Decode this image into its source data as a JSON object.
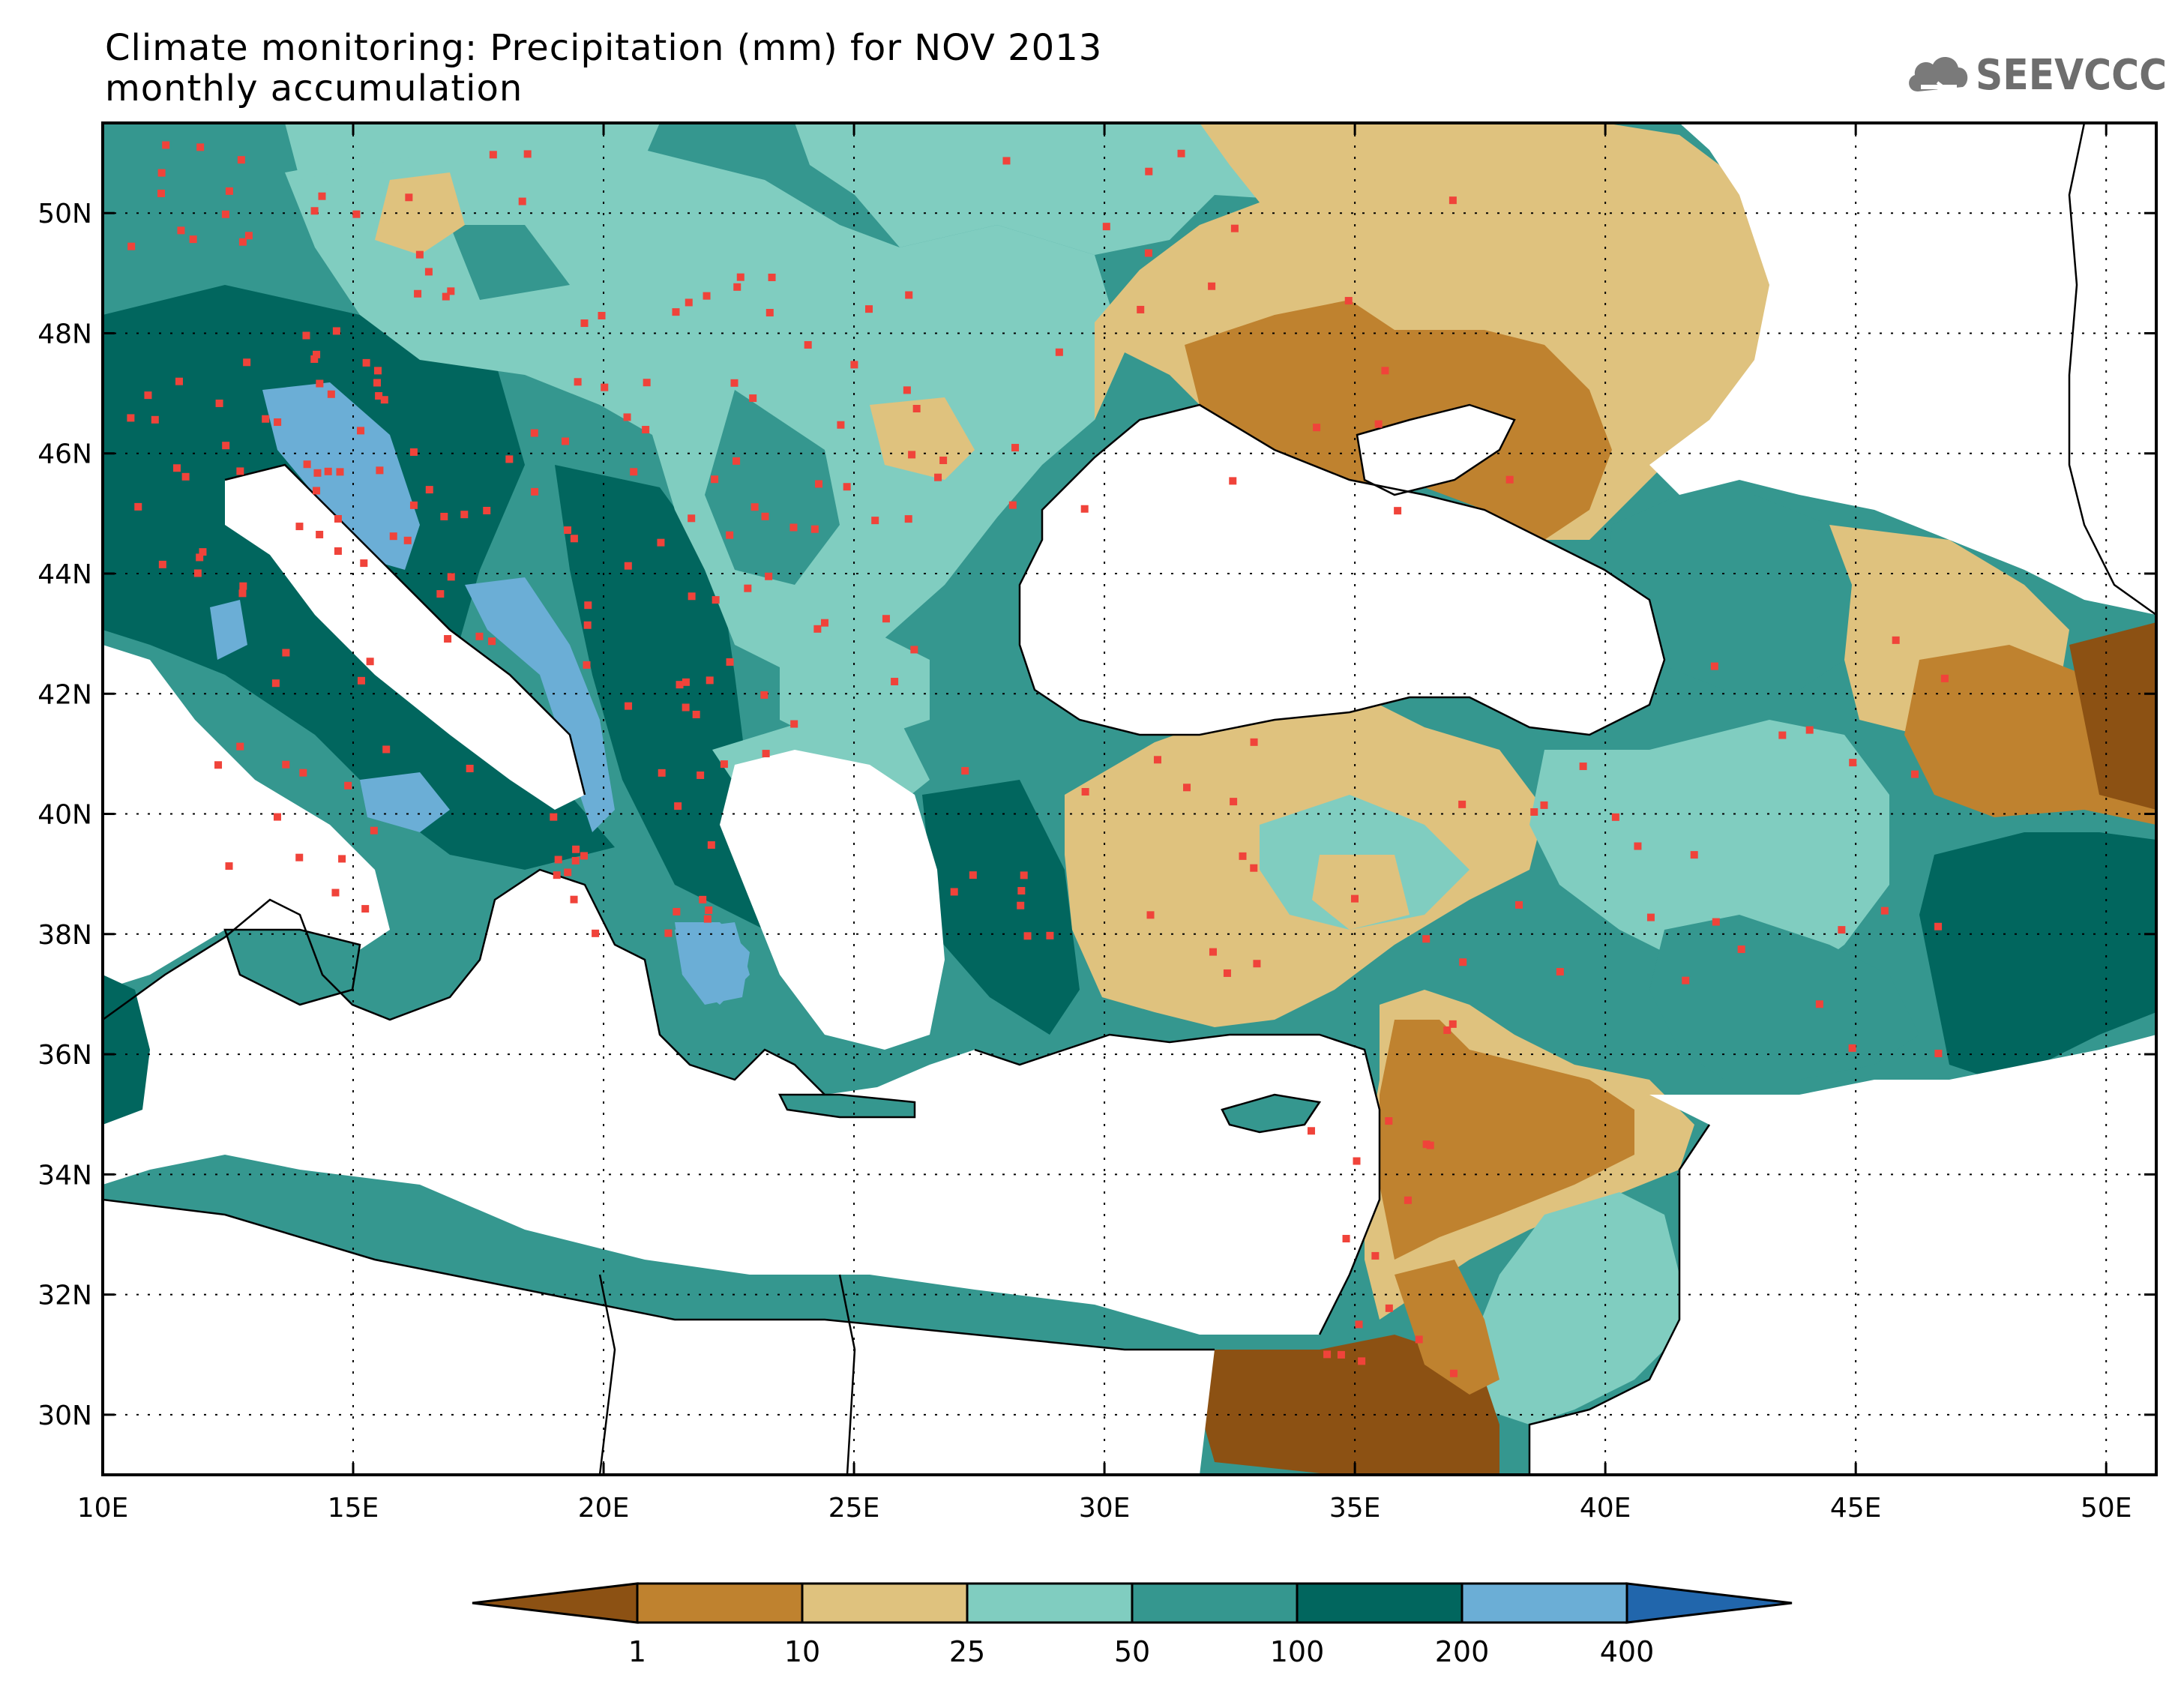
{
  "title": "Climate monitoring: Precipitation (mm) for NOV 2013",
  "subtitle": "monthly accumulation",
  "logo": {
    "text": "SEEVCCC",
    "icon": "cloud-icon"
  },
  "map": {
    "lon_range": [
      10,
      51
    ],
    "lat_range": [
      29,
      51.5
    ],
    "lon_ticks": [
      {
        "value": 10,
        "label": "10E"
      },
      {
        "value": 15,
        "label": "15E"
      },
      {
        "value": 20,
        "label": "20E"
      },
      {
        "value": 25,
        "label": "25E"
      },
      {
        "value": 30,
        "label": "30E"
      },
      {
        "value": 35,
        "label": "35E"
      },
      {
        "value": 40,
        "label": "40E"
      },
      {
        "value": 45,
        "label": "45E"
      },
      {
        "value": 50,
        "label": "50E"
      }
    ],
    "lat_ticks": [
      {
        "value": 30,
        "label": "30N"
      },
      {
        "value": 32,
        "label": "32N"
      },
      {
        "value": 34,
        "label": "34N"
      },
      {
        "value": 36,
        "label": "36N"
      },
      {
        "value": 38,
        "label": "38N"
      },
      {
        "value": 40,
        "label": "40N"
      },
      {
        "value": 42,
        "label": "42N"
      },
      {
        "value": 44,
        "label": "44N"
      },
      {
        "value": 46,
        "label": "46N"
      },
      {
        "value": 48,
        "label": "48N"
      },
      {
        "value": 50,
        "label": "50N"
      }
    ],
    "gridlines": true,
    "station_marker_color": "#f0433a"
  },
  "colorbar": {
    "colors": [
      "#8c5113",
      "#bf822f",
      "#dfc27e",
      "#80cdc0",
      "#35978f",
      "#01665e",
      "#6baed6",
      "#2166ac"
    ],
    "labels": [
      "1",
      "10",
      "25",
      "50",
      "100",
      "200",
      "400"
    ],
    "extend": "both"
  }
}
